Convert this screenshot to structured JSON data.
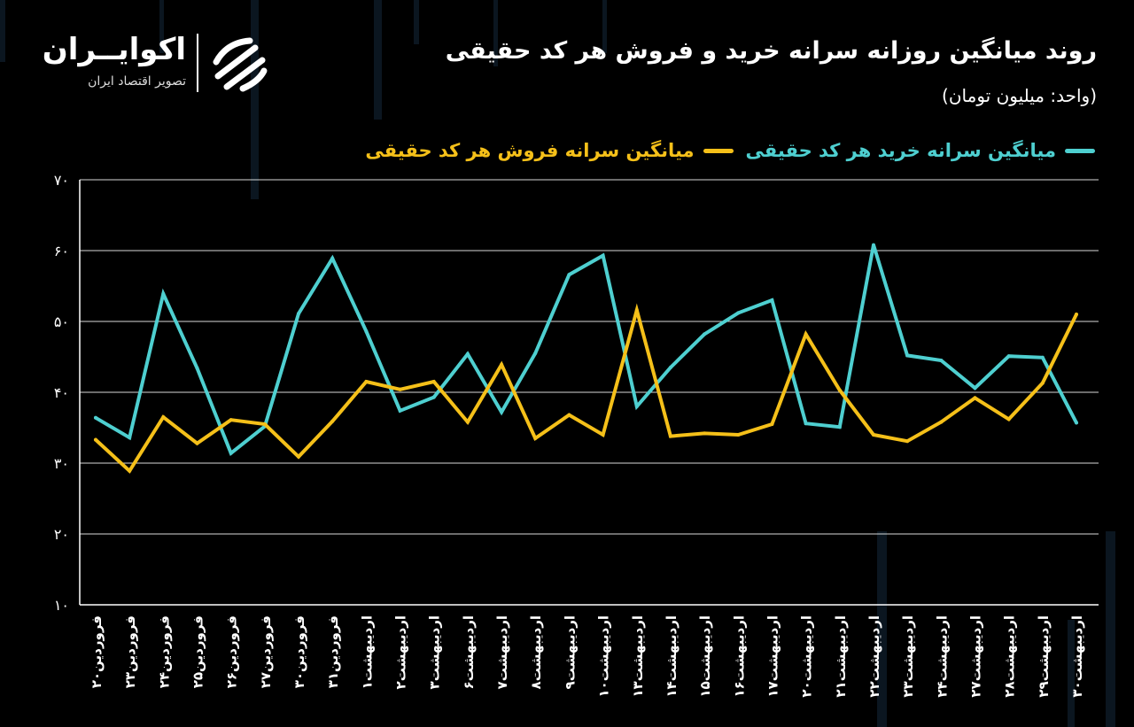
{
  "header": {
    "title": "روند میانگین روزانه سرانه خرید و فروش هر کد حقیقی",
    "unit": "(واحد: میلیون تومان)"
  },
  "brand": {
    "name": "اکوایــران",
    "tagline": "تصویر اقتصاد ایران"
  },
  "colors": {
    "background": "#000000",
    "buy": "#4ecfd0",
    "sell": "#f5c019",
    "grid": "#ffffff"
  },
  "chart_data": {
    "type": "line",
    "categories": [
      "فروردین۲۰",
      "فروردین۲۳",
      "فروردین۲۴",
      "فروردین۲۵",
      "فروردین۲۶",
      "فروردین۲۷",
      "فروردین۳۰",
      "فروردین۳۱",
      "اردیبهشت۱",
      "اردیبهشت۲",
      "اردیبهشت۳",
      "اردیبهشت۶",
      "اردیبهشت۷",
      "اردیبهشت۸",
      "اردیبهشت۹",
      "اردیبهشت۱۰",
      "اردیبهشت۱۳",
      "اردیبهشت۱۴",
      "اردیبهشت۱۵",
      "اردیبهشت۱۶",
      "اردیبهشت۱۷",
      "اردیبهشت۲۰",
      "اردیبهشت۲۱",
      "اردیبهشت۲۲",
      "اردیبهشت۲۳",
      "اردیبهشت۲۴",
      "اردیبهشت۲۷",
      "اردیبهشت۲۸",
      "اردیبهشت۲۹",
      "اردیبهشت۳۰"
    ],
    "series": [
      {
        "name": "میانگین سرانه خرید هر کد حقیقی",
        "color": "#4ecfd0",
        "values": [
          36.4,
          33.6,
          53.9,
          43.4,
          31.4,
          35.2,
          51.1,
          58.9,
          48.6,
          37.4,
          39.3,
          45.4,
          37.2,
          45.5,
          56.6,
          59.3,
          38.0,
          43.5,
          48.2,
          51.2,
          53.0,
          35.6,
          35.1,
          60.8,
          45.2,
          44.5,
          40.6,
          45.1,
          44.9,
          35.7
        ]
      },
      {
        "name": "میانگین سرانه فروش هر کد حقیقی",
        "color": "#f5c019",
        "values": [
          33.3,
          28.9,
          36.5,
          32.8,
          36.1,
          35.5,
          30.9,
          35.9,
          41.5,
          40.4,
          41.5,
          35.8,
          43.9,
          33.5,
          36.8,
          34.0,
          51.6,
          33.8,
          34.2,
          34.0,
          35.5,
          48.2,
          40.3,
          34.0,
          33.1,
          35.8,
          39.2,
          36.2,
          41.3,
          51.0
        ]
      }
    ],
    "ylim": [
      10,
      70
    ],
    "yticks": [
      "۱۰",
      "۲۰",
      "۳۰",
      "۴۰",
      "۵۰",
      "۶۰",
      "۷۰"
    ],
    "grid": true,
    "legend_position": "top-right"
  }
}
